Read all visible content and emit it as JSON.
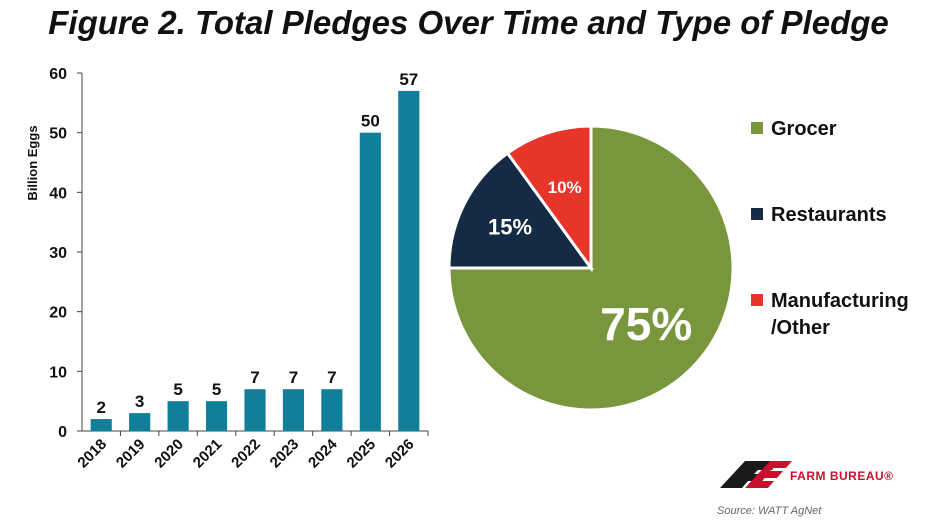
{
  "title": "Figure 2. Total Pledges Over Time and Type of Pledge",
  "chart_data": [
    {
      "type": "bar",
      "ylabel": "Billion Eggs",
      "ylim": [
        0,
        60
      ],
      "yticks": [
        0,
        10,
        20,
        30,
        40,
        50,
        60
      ],
      "categories": [
        "2018",
        "2019",
        "2020",
        "2021",
        "2022",
        "2023",
        "2024",
        "2025",
        "2026"
      ],
      "values": [
        2,
        3,
        5,
        5,
        7,
        7,
        7,
        50,
        57
      ],
      "color": "#0f7f9a"
    },
    {
      "type": "pie",
      "slices": [
        {
          "name": "Grocer",
          "value": 75,
          "label": "75%",
          "color": "#78963c"
        },
        {
          "name": "Restaurants",
          "value": 15,
          "label": "15%",
          "color": "#142a45"
        },
        {
          "name": "Manufacturing /Other",
          "value": 10,
          "label": "10%",
          "color": "#e8352a"
        }
      ],
      "legend": [
        {
          "lines": [
            "Grocer"
          ],
          "color": "#78963c"
        },
        {
          "lines": [
            "Restaurants"
          ],
          "color": "#142a45"
        },
        {
          "lines": [
            "Manufacturing",
            "/Other"
          ],
          "color": "#e8352a"
        }
      ]
    }
  ],
  "logo": {
    "text": "FARM BUREAU®"
  },
  "source": "Source: WATT AgNet"
}
